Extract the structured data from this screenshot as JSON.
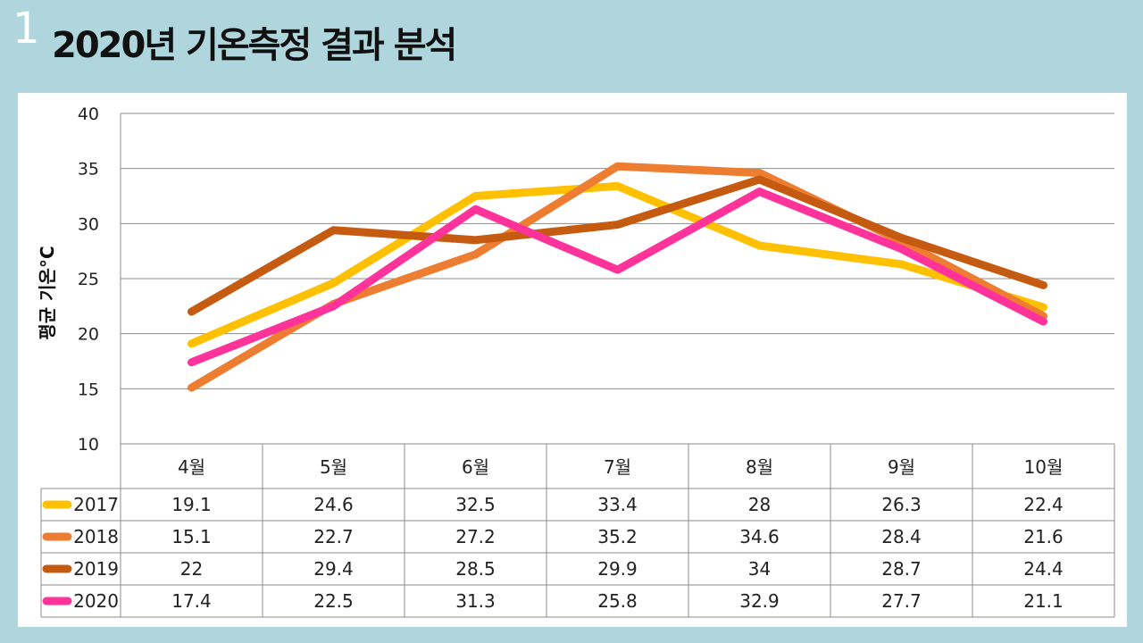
{
  "slide": {
    "number": "1",
    "title": "2020년 기온측정 결과 분석"
  },
  "chart_data": {
    "type": "line",
    "title": "",
    "ylabel": "평균 기온°C",
    "xlabel": "",
    "ylim": [
      10,
      40
    ],
    "yticks": [
      10,
      15,
      20,
      25,
      30,
      35,
      40
    ],
    "grid": true,
    "legend": "data-table",
    "categories": [
      "4월",
      "5월",
      "6월",
      "7월",
      "8월",
      "9월",
      "10월"
    ],
    "series": [
      {
        "name": "2017",
        "color": "#ffc000",
        "values": [
          19.1,
          24.6,
          32.5,
          33.4,
          28,
          26.3,
          22.4
        ]
      },
      {
        "name": "2018",
        "color": "#ed7d31",
        "values": [
          15.1,
          22.7,
          27.2,
          35.2,
          34.6,
          28.4,
          21.6
        ]
      },
      {
        "name": "2019",
        "color": "#c55a11",
        "values": [
          22,
          29.4,
          28.5,
          29.9,
          34,
          28.7,
          24.4
        ]
      },
      {
        "name": "2020",
        "color": "#ff3399",
        "values": [
          17.4,
          22.5,
          31.3,
          25.8,
          32.9,
          27.7,
          21.1
        ]
      }
    ]
  }
}
